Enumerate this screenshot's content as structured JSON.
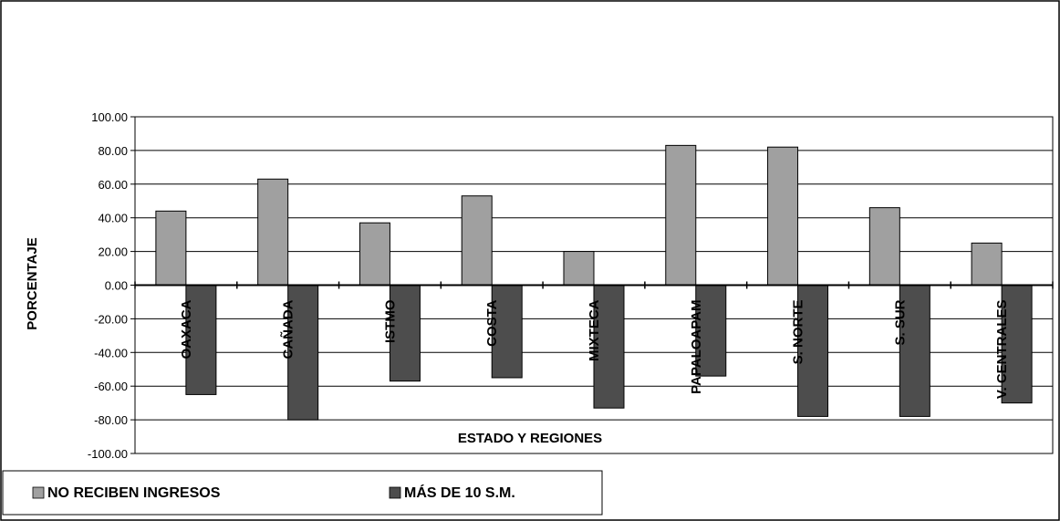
{
  "chart_data": {
    "type": "bar",
    "title": "",
    "xlabel": "ESTADO Y REGIONES",
    "ylabel": "PORCENTAJE",
    "ylim": [
      -100,
      100
    ],
    "ytick_step": 20,
    "ytick_format": "0.00",
    "grid": true,
    "legend_position": "bottom-left",
    "categories": [
      "OAXACA",
      "CAÑADA",
      "ISTMO",
      "COSTA",
      "MIXTECA",
      "PAPALOAPAM",
      "S. NORTE",
      "S. SUR",
      "V. CENTRALES"
    ],
    "series": [
      {
        "name": "NO RECIBEN INGRESOS",
        "color": "#a0a0a0",
        "values": [
          44,
          63,
          37,
          53,
          20,
          83,
          82,
          46,
          25
        ]
      },
      {
        "name": "MÁS DE 10 S.M.",
        "color": "#4d4d4d",
        "values": [
          -65,
          -80,
          -57,
          -55,
          -73,
          -54,
          -78,
          -78,
          -70
        ]
      }
    ]
  }
}
